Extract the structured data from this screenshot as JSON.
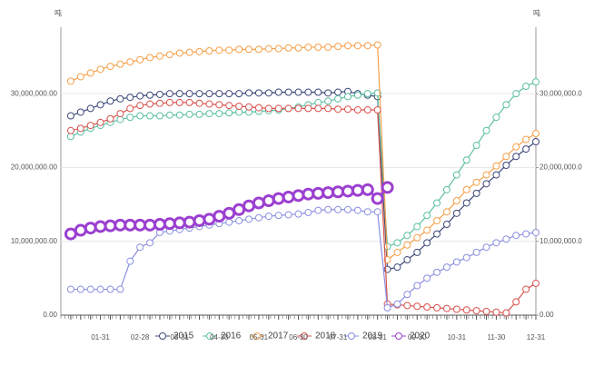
{
  "chart_data": {
    "type": "line",
    "y_label": "吨",
    "y2_label": "吨",
    "categories": [
      null,
      null,
      null,
      "01-31",
      null,
      null,
      null,
      "02-28",
      null,
      null,
      null,
      "03-31",
      null,
      null,
      null,
      "04-30",
      null,
      null,
      null,
      "05-31",
      null,
      null,
      null,
      "06-30",
      null,
      null,
      null,
      "07-31",
      null,
      null,
      null,
      "08-31",
      null,
      null,
      null,
      "09-30",
      null,
      null,
      null,
      "10-31",
      null,
      null,
      null,
      "11-30",
      null,
      null,
      null,
      "12-31"
    ],
    "ylim": [
      0,
      39000000
    ],
    "yticks": [
      {
        "value": 0,
        "label": "0.00"
      },
      {
        "value": 10000000,
        "label": "10,000,000.00"
      },
      {
        "value": 20000000,
        "label": "20,000,000.00"
      },
      {
        "value": 30000000,
        "label": "30,000,000.00"
      }
    ],
    "y2lim": [
      0,
      39000000
    ],
    "y2ticks": [
      {
        "value": 0,
        "label": "0.00"
      },
      {
        "value": 10000000,
        "label": "10,000,000.0"
      },
      {
        "value": 20000000,
        "label": "20,000,000.0"
      },
      {
        "value": 30000000,
        "label": "30,000,000.0"
      }
    ],
    "grid": true,
    "legend": "bottom",
    "series": [
      {
        "name": "2015",
        "color": "#3d4878",
        "values": [
          27000000,
          27500000,
          28000000,
          28500000,
          29000000,
          29300000,
          29500000,
          29700000,
          29800000,
          29900000,
          30000000,
          30000000,
          30000000,
          30000000,
          30000000,
          30000000,
          30000000,
          30000000,
          30100000,
          30100000,
          30100000,
          30200000,
          30200000,
          30200000,
          30200000,
          30200000,
          30100000,
          30200000,
          30300000,
          30000000,
          29800000,
          29600000,
          6200000,
          6500000,
          7500000,
          8500000,
          9800000,
          11000000,
          12300000,
          13800000,
          15200000,
          16500000,
          17800000,
          19000000,
          20300000,
          21500000,
          22500000,
          23500000
        ]
      },
      {
        "name": "2016",
        "color": "#5cbfa3",
        "values": [
          24200000,
          24800000,
          25300000,
          25700000,
          26100000,
          26500000,
          26800000,
          27000000,
          27000000,
          27000000,
          27100000,
          27100000,
          27200000,
          27200000,
          27300000,
          27300000,
          27400000,
          27500000,
          27500000,
          27600000,
          27700000,
          27800000,
          28000000,
          28200000,
          28500000,
          28800000,
          29000000,
          29300000,
          29600000,
          29800000,
          30000000,
          30100000,
          9300000,
          9800000,
          10800000,
          12000000,
          13500000,
          15200000,
          17000000,
          19000000,
          21000000,
          23000000,
          25000000,
          26800000,
          28500000,
          30000000,
          31000000,
          31600000
        ]
      },
      {
        "name": "2017",
        "color": "#f5a04a",
        "values": [
          31700000,
          32300000,
          32800000,
          33300000,
          33700000,
          34000000,
          34300000,
          34600000,
          34900000,
          35100000,
          35300000,
          35500000,
          35600000,
          35700000,
          35800000,
          35900000,
          35900000,
          36000000,
          36000000,
          36000000,
          36100000,
          36100000,
          36200000,
          36200000,
          36300000,
          36300000,
          36300000,
          36400000,
          36500000,
          36500000,
          36500000,
          36600000,
          7500000,
          8500000,
          9500000,
          10500000,
          11500000,
          12800000,
          14000000,
          15500000,
          17000000,
          18000000,
          19000000,
          20200000,
          21500000,
          22800000,
          23800000,
          24600000
        ]
      },
      {
        "name": "2018",
        "color": "#d9534f",
        "values": [
          25000000,
          25300000,
          25700000,
          26100000,
          26600000,
          27300000,
          28000000,
          28400000,
          28600000,
          28700000,
          28800000,
          28800000,
          28800000,
          28700000,
          28600000,
          28500000,
          28400000,
          28300000,
          28200000,
          28100000,
          28000000,
          28000000,
          28000000,
          28000000,
          28000000,
          28000000,
          28000000,
          27900000,
          27900000,
          27800000,
          27800000,
          27800000,
          1500000,
          1400000,
          1300000,
          1200000,
          1100000,
          1000000,
          900000,
          800000,
          700000,
          600000,
          500000,
          400000,
          300000,
          1800000,
          3500000,
          4300000
        ]
      },
      {
        "name": "2019",
        "color": "#8a8fe0",
        "values": [
          3500000,
          3500000,
          3500000,
          3500000,
          3500000,
          3500000,
          7300000,
          9200000,
          9800000,
          11200000,
          11400000,
          11600000,
          11800000,
          12000000,
          12200000,
          12400000,
          12600000,
          12800000,
          13000000,
          13200000,
          13400000,
          13500000,
          13600000,
          13700000,
          13900000,
          14200000,
          14300000,
          14300000,
          14300000,
          14200000,
          14000000,
          14000000,
          1000000,
          1500000,
          2800000,
          4000000,
          5000000,
          5800000,
          6500000,
          7200000,
          7800000,
          8500000,
          9200000,
          9800000,
          10300000,
          10800000,
          11000000,
          11200000
        ]
      },
      {
        "name": "2020",
        "color": "#9b40d0",
        "values": [
          11000000,
          11500000,
          11800000,
          12000000,
          12100000,
          12200000,
          12200000,
          12200000,
          12200000,
          12300000,
          12400000,
          12500000,
          12600000,
          12800000,
          13000000,
          13400000,
          13800000,
          14300000,
          14800000,
          15200000,
          15500000,
          15800000,
          16000000,
          16200000,
          16400000,
          16500000,
          16600000,
          16700000,
          16800000,
          16900000,
          17000000,
          15800000,
          17300000,
          null,
          null,
          null,
          null,
          null,
          null,
          null,
          null,
          null,
          null,
          null,
          null,
          null,
          null,
          null
        ]
      }
    ]
  }
}
